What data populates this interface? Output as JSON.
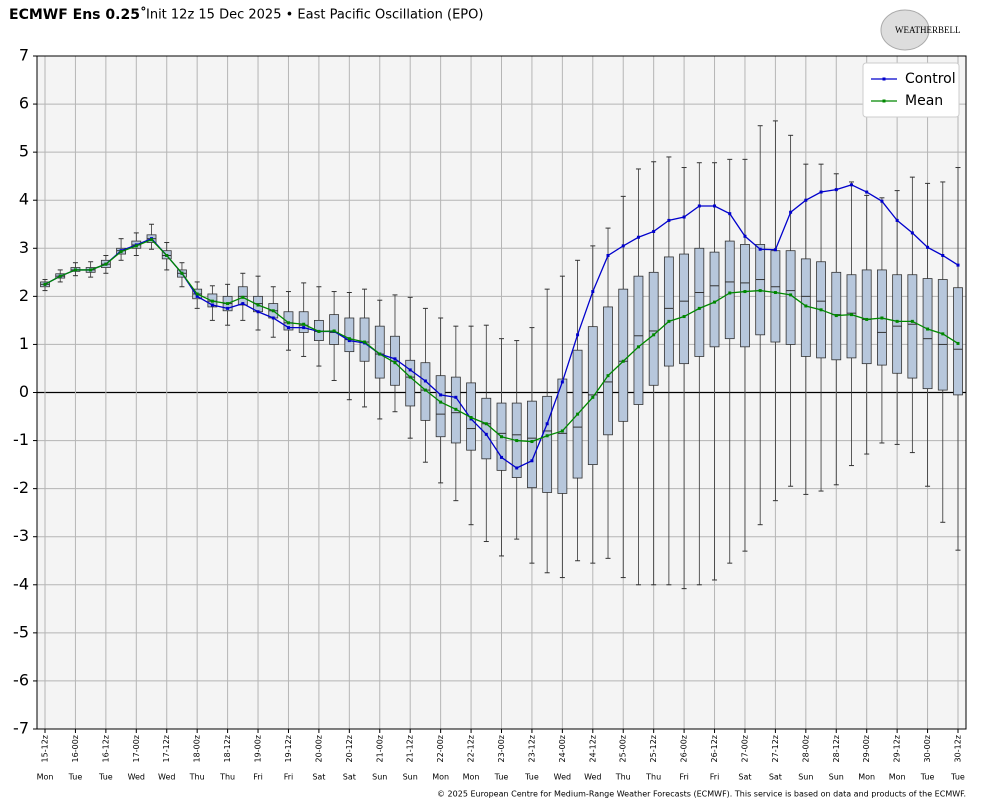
{
  "chart_data": {
    "type": "box",
    "title": "ECMWF Ens 0.25˚",
    "subtitle": "Init 12z 15 Dec 2025 • East Pacific Oscillation (EPO)",
    "logo": "WEATHERBELL",
    "footer": "© 2025 European Centre for Medium-Range Weather Forecasts (ECMWF). This service is based on data and products of the ECMWF.",
    "categories": [
      "15-12z",
      null,
      "16-00z",
      null,
      "16-12z",
      null,
      "17-00z",
      null,
      "17-12z",
      null,
      "18-00z",
      null,
      "18-12z",
      null,
      "19-00z",
      null,
      "19-12z",
      null,
      "20-00z",
      null,
      "20-12z",
      null,
      "21-00z",
      null,
      "21-12z",
      null,
      "22-00z",
      null,
      "22-12z",
      null,
      "23-00z",
      null,
      "23-12z",
      null,
      "24-00z",
      null,
      "24-12z",
      null,
      "25-00z",
      null,
      "25-12z",
      null,
      "26-00z",
      null,
      "26-12z",
      null,
      "27-00z",
      null,
      "27-12z",
      null,
      "28-00z",
      null,
      "28-12z",
      null,
      "29-00z",
      null,
      "29-12z",
      null,
      "30-00z",
      null,
      "30-12z"
    ],
    "weekdays": [
      "Mon",
      null,
      "Tue",
      null,
      "Tue",
      null,
      "Wed",
      null,
      "Wed",
      null,
      "Thu",
      null,
      "Thu",
      null,
      "Fri",
      null,
      "Fri",
      null,
      "Sat",
      null,
      "Sat",
      null,
      "Sun",
      null,
      "Sun",
      null,
      "Mon",
      null,
      "Mon",
      null,
      "Tue",
      null,
      "Tue",
      null,
      "Wed",
      null,
      "Wed",
      null,
      "Thu",
      null,
      "Thu",
      null,
      "Fri",
      null,
      "Fri",
      null,
      "Sat",
      null,
      "Sat",
      null,
      "Sun",
      null,
      "Sun",
      null,
      "Mon",
      null,
      "Mon",
      null,
      "Tue",
      null,
      "Tue"
    ],
    "boxes": {
      "min": [
        2.12,
        2.3,
        2.43,
        2.4,
        2.48,
        2.75,
        2.85,
        2.98,
        2.55,
        2.2,
        1.75,
        1.5,
        1.4,
        1.5,
        1.3,
        1.15,
        0.88,
        0.75,
        0.55,
        0.25,
        -0.15,
        -0.3,
        -0.55,
        -0.4,
        -0.95,
        -1.45,
        -1.88,
        -2.25,
        -2.75,
        -3.1,
        -3.4,
        -3.05,
        -3.55,
        -3.75,
        -3.85,
        -3.5,
        -3.55,
        -3.45,
        -3.85,
        -4.0,
        -4.0,
        -4.0,
        -4.08,
        -4.0,
        -3.9,
        -3.55,
        -3.3,
        -2.75,
        -2.25,
        -1.95,
        -2.12,
        -2.05,
        -1.92,
        -1.52,
        -1.28,
        -1.05,
        -1.08,
        -1.25,
        -1.95,
        -2.7,
        -3.28
      ],
      "q1": [
        2.2,
        2.38,
        2.52,
        2.5,
        2.6,
        2.88,
        3.0,
        3.12,
        2.78,
        2.4,
        1.95,
        1.78,
        1.7,
        1.82,
        1.68,
        1.55,
        1.3,
        1.25,
        1.08,
        1.0,
        0.85,
        0.65,
        0.3,
        0.15,
        -0.28,
        -0.58,
        -0.92,
        -1.05,
        -1.2,
        -1.38,
        -1.62,
        -1.77,
        -1.98,
        -2.08,
        -2.1,
        -1.78,
        -1.5,
        -0.88,
        -0.6,
        -0.25,
        0.15,
        0.55,
        0.6,
        0.75,
        0.95,
        1.12,
        0.95,
        1.2,
        1.05,
        1.0,
        0.75,
        0.72,
        0.68,
        0.72,
        0.6,
        0.57,
        0.4,
        0.3,
        0.08,
        0.05,
        -0.05
      ],
      "median": [
        2.25,
        2.42,
        2.55,
        2.55,
        2.67,
        2.95,
        3.07,
        3.2,
        2.85,
        2.48,
        2.05,
        1.9,
        1.85,
        2.0,
        1.85,
        1.7,
        1.45,
        1.4,
        1.27,
        1.25,
        1.1,
        1.05,
        0.8,
        0.65,
        0.32,
        0.05,
        -0.45,
        -0.42,
        -0.75,
        -0.65,
        -0.85,
        -0.88,
        -0.95,
        -0.8,
        -0.85,
        -0.72,
        -0.05,
        0.22,
        0.65,
        1.18,
        1.28,
        1.75,
        1.9,
        2.08,
        2.22,
        2.3,
        2.28,
        2.35,
        2.2,
        2.12,
        2.0,
        1.9,
        1.62,
        1.65,
        1.52,
        1.25,
        1.38,
        1.42,
        1.12,
        1.0,
        0.9
      ],
      "q3": [
        2.3,
        2.47,
        2.6,
        2.6,
        2.75,
        3.0,
        3.15,
        3.28,
        2.95,
        2.55,
        2.15,
        2.05,
        2.0,
        2.2,
        2.0,
        1.85,
        1.68,
        1.68,
        1.5,
        1.62,
        1.55,
        1.55,
        1.38,
        1.17,
        0.67,
        0.62,
        0.35,
        0.32,
        0.2,
        -0.12,
        -0.22,
        -0.22,
        -0.18,
        -0.08,
        0.28,
        0.88,
        1.37,
        1.78,
        2.15,
        2.42,
        2.5,
        2.82,
        2.88,
        3.0,
        2.92,
        3.15,
        3.08,
        3.08,
        2.95,
        2.95,
        2.78,
        2.72,
        2.5,
        2.45,
        2.55,
        2.55,
        2.45,
        2.45,
        2.37,
        2.35,
        2.18
      ],
      "max": [
        2.35,
        2.55,
        2.7,
        2.72,
        2.85,
        3.2,
        3.32,
        3.5,
        3.12,
        2.7,
        2.3,
        2.22,
        2.25,
        2.48,
        2.42,
        2.2,
        2.1,
        2.28,
        2.2,
        2.1,
        2.08,
        2.15,
        1.92,
        2.03,
        1.98,
        1.75,
        1.55,
        1.38,
        1.38,
        1.4,
        1.12,
        1.08,
        1.35,
        2.15,
        2.42,
        2.75,
        3.05,
        3.42,
        4.08,
        4.65,
        4.8,
        4.9,
        4.68,
        4.78,
        4.78,
        4.85,
        4.85,
        5.55,
        5.65,
        5.35,
        4.75,
        4.75,
        4.55,
        4.38,
        4.1,
        4.05,
        4.2,
        4.48,
        4.35,
        4.38,
        4.68
      ],
      "fill": "#b7c7dc"
    },
    "series": [
      {
        "name": "Control",
        "color": "#0000cc",
        "values": [
          2.25,
          2.42,
          2.55,
          2.55,
          2.67,
          2.95,
          3.07,
          3.2,
          2.85,
          2.48,
          2.0,
          1.82,
          1.75,
          1.85,
          1.68,
          1.55,
          1.35,
          1.35,
          1.27,
          1.27,
          1.08,
          1.03,
          0.8,
          0.7,
          0.47,
          0.24,
          -0.05,
          -0.1,
          -0.55,
          -0.87,
          -1.35,
          -1.57,
          -1.42,
          -0.65,
          0.22,
          1.2,
          2.1,
          2.85,
          3.05,
          3.23,
          3.35,
          3.58,
          3.65,
          3.88,
          3.88,
          3.72,
          3.25,
          2.98,
          2.97,
          3.75,
          4.0,
          4.17,
          4.22,
          4.32,
          4.17,
          3.98,
          3.58,
          3.32,
          3.02,
          2.85,
          2.65
        ]
      },
      {
        "name": "Mean",
        "color": "#008800",
        "values": [
          2.25,
          2.42,
          2.55,
          2.55,
          2.67,
          2.93,
          3.05,
          3.18,
          2.85,
          2.48,
          2.05,
          1.9,
          1.85,
          1.98,
          1.82,
          1.7,
          1.45,
          1.42,
          1.27,
          1.28,
          1.12,
          1.05,
          0.8,
          0.62,
          0.32,
          0.05,
          -0.2,
          -0.35,
          -0.52,
          -0.65,
          -0.92,
          -1.0,
          -1.02,
          -0.9,
          -0.8,
          -0.45,
          -0.1,
          0.35,
          0.65,
          0.95,
          1.2,
          1.48,
          1.58,
          1.75,
          1.88,
          2.07,
          2.1,
          2.12,
          2.08,
          2.03,
          1.8,
          1.72,
          1.6,
          1.62,
          1.52,
          1.55,
          1.48,
          1.48,
          1.32,
          1.22,
          1.02
        ]
      }
    ],
    "ylim": [
      -7,
      7
    ],
    "yticks": [
      -7,
      -6,
      -5,
      -4,
      -3,
      -2,
      -1,
      0,
      1,
      2,
      3,
      4,
      5,
      6,
      7
    ],
    "grid": true,
    "legend": "top-right"
  }
}
